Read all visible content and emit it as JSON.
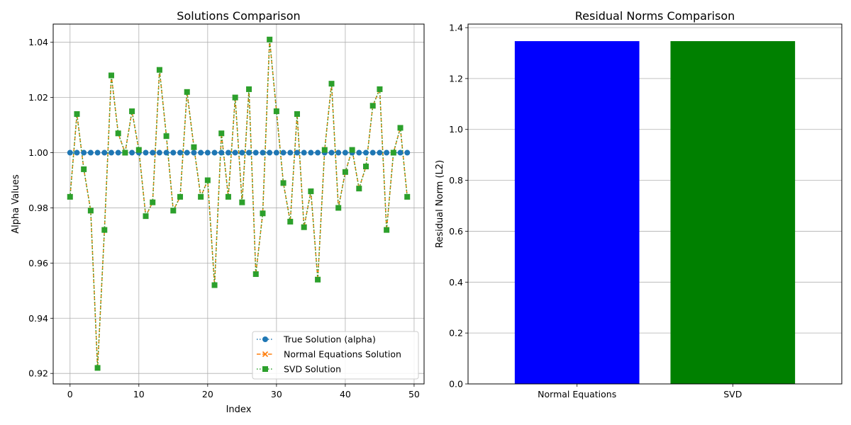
{
  "chart_data": [
    {
      "type": "line",
      "title": "Solutions Comparison",
      "xlabel": "Index",
      "ylabel": "Alpha Values",
      "xlim": [
        -2.45,
        51.45
      ],
      "ylim": [
        0.9162,
        1.0466
      ],
      "xticks": [
        0,
        10,
        20,
        30,
        40,
        50
      ],
      "yticks": [
        0.92,
        0.94,
        0.96,
        0.98,
        1.0,
        1.02,
        1.04
      ],
      "ytick_labels": [
        "0.92",
        "0.94",
        "0.96",
        "0.98",
        "1.00",
        "1.02",
        "1.04"
      ],
      "grid": true,
      "legend_position": "lower-right",
      "colors": {
        "true": "#1f77b4",
        "normal": "#ff7f0e",
        "svd": "#2ca02c"
      },
      "series": [
        {
          "name": "True Solution (alpha)",
          "marker": "o",
          "linestyle": "dotted",
          "values": [
            1,
            1,
            1,
            1,
            1,
            1,
            1,
            1,
            1,
            1,
            1,
            1,
            1,
            1,
            1,
            1,
            1,
            1,
            1,
            1,
            1,
            1,
            1,
            1,
            1,
            1,
            1,
            1,
            1,
            1,
            1,
            1,
            1,
            1,
            1,
            1,
            1,
            1,
            1,
            1,
            1,
            1,
            1,
            1,
            1,
            1,
            1,
            1,
            1,
            1
          ]
        },
        {
          "name": "Normal Equations Solution",
          "marker": "x",
          "linestyle": "dashed",
          "values": [
            0.984,
            1.014,
            0.994,
            0.979,
            0.922,
            0.972,
            1.028,
            1.007,
            1.0,
            1.015,
            1.001,
            0.977,
            0.982,
            1.03,
            1.006,
            0.979,
            0.984,
            1.022,
            1.002,
            0.984,
            0.99,
            0.952,
            1.007,
            0.984,
            1.02,
            0.982,
            1.023,
            0.956,
            0.978,
            1.041,
            1.015,
            0.989,
            0.975,
            1.014,
            0.973,
            0.986,
            0.954,
            1.001,
            1.025,
            0.98,
            0.993,
            1.001,
            0.987,
            0.995,
            1.017,
            1.023,
            0.972,
            1.0,
            1.009,
            0.984
          ]
        },
        {
          "name": "SVD Solution",
          "marker": "s",
          "linestyle": "dotted",
          "values": [
            0.984,
            1.014,
            0.994,
            0.979,
            0.922,
            0.972,
            1.028,
            1.007,
            1.0,
            1.015,
            1.001,
            0.977,
            0.982,
            1.03,
            1.006,
            0.979,
            0.984,
            1.022,
            1.002,
            0.984,
            0.99,
            0.952,
            1.007,
            0.984,
            1.02,
            0.982,
            1.023,
            0.956,
            0.978,
            1.041,
            1.015,
            0.989,
            0.975,
            1.014,
            0.973,
            0.986,
            0.954,
            1.001,
            1.025,
            0.98,
            0.993,
            1.001,
            0.987,
            0.995,
            1.017,
            1.023,
            0.972,
            1.0,
            1.009,
            0.984
          ]
        }
      ]
    },
    {
      "type": "bar",
      "title": "Residual Norms Comparison",
      "xlabel": "",
      "ylabel": "Residual Norm (L2)",
      "categories": [
        "Normal Equations",
        "SVD"
      ],
      "values": [
        1.347,
        1.347
      ],
      "bar_colors": [
        "#0000ff",
        "#008000"
      ],
      "ylim": [
        0,
        1.414
      ],
      "yticks": [
        0.0,
        0.2,
        0.4,
        0.6,
        0.8,
        1.0,
        1.2,
        1.4
      ],
      "ytick_labels": [
        "0.0",
        "0.2",
        "0.4",
        "0.6",
        "0.8",
        "1.0",
        "1.2",
        "1.4"
      ],
      "grid": true
    }
  ]
}
